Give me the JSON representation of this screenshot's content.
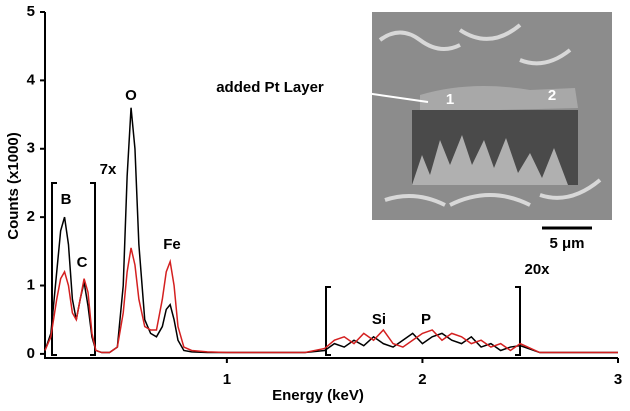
{
  "chart_data": {
    "type": "line",
    "x_label": "Energy (keV)",
    "y_label": "Counts (x1000)",
    "x": [
      0.07,
      0.1,
      0.13,
      0.15,
      0.17,
      0.19,
      0.21,
      0.23,
      0.25,
      0.27,
      0.29,
      0.31,
      0.33,
      0.36,
      0.4,
      0.44,
      0.47,
      0.49,
      0.51,
      0.53,
      0.55,
      0.58,
      0.61,
      0.64,
      0.67,
      0.69,
      0.71,
      0.73,
      0.75,
      0.78,
      0.82,
      0.9,
      1.0,
      1.2,
      1.4,
      1.5,
      1.55,
      1.6,
      1.65,
      1.7,
      1.75,
      1.8,
      1.85,
      1.9,
      1.95,
      2.0,
      2.05,
      2.1,
      2.15,
      2.2,
      2.25,
      2.3,
      2.35,
      2.4,
      2.45,
      2.5,
      2.6,
      2.8,
      3.0
    ],
    "series": [
      {
        "color": "#000000",
        "values": [
          0.05,
          0.3,
          1.2,
          1.8,
          2.0,
          1.6,
          0.8,
          0.5,
          0.8,
          1.05,
          0.7,
          0.25,
          0.05,
          0.02,
          0.02,
          0.1,
          1.0,
          2.6,
          3.6,
          3.0,
          1.6,
          0.5,
          0.3,
          0.25,
          0.4,
          0.65,
          0.72,
          0.5,
          0.2,
          0.05,
          0.03,
          0.02,
          0.02,
          0.02,
          0.02,
          0.05,
          0.15,
          0.1,
          0.2,
          0.12,
          0.25,
          0.15,
          0.1,
          0.2,
          0.3,
          0.15,
          0.25,
          0.3,
          0.2,
          0.15,
          0.25,
          0.1,
          0.15,
          0.05,
          0.1,
          0.12,
          0.02,
          0.02,
          0.02
        ]
      },
      {
        "color": "#d42020",
        "values": [
          0.05,
          0.25,
          0.8,
          1.1,
          1.2,
          1.0,
          0.6,
          0.5,
          0.8,
          1.1,
          0.9,
          0.3,
          0.05,
          0.02,
          0.02,
          0.1,
          0.6,
          1.2,
          1.55,
          1.3,
          0.8,
          0.4,
          0.35,
          0.35,
          0.8,
          1.2,
          1.35,
          1.0,
          0.4,
          0.1,
          0.05,
          0.03,
          0.02,
          0.02,
          0.02,
          0.08,
          0.2,
          0.25,
          0.15,
          0.3,
          0.2,
          0.35,
          0.15,
          0.1,
          0.2,
          0.3,
          0.35,
          0.2,
          0.3,
          0.25,
          0.15,
          0.2,
          0.1,
          0.15,
          0.05,
          0.15,
          0.02,
          0.02,
          0.02
        ]
      }
    ],
    "xlim": [
      0.07,
      3
    ],
    "ylim": [
      -0.06,
      5
    ],
    "xticks": [
      1,
      2,
      3
    ],
    "yticks": [
      0,
      1,
      2,
      3,
      4,
      5
    ],
    "annotations": [
      "B",
      "C",
      "O",
      "Fe",
      "Si",
      "P",
      "7x",
      "20x"
    ]
  },
  "inset": {
    "callout": "added Pt Layer",
    "markers": [
      "1",
      "2"
    ],
    "scale_bar": "5 μm"
  }
}
